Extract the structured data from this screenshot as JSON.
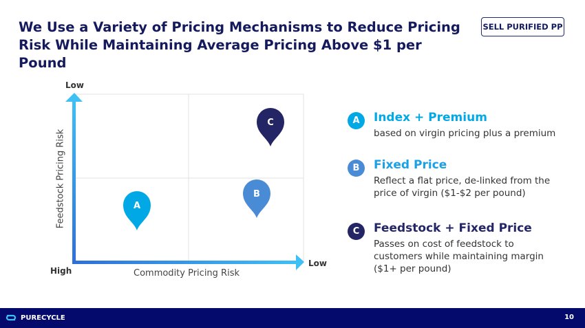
{
  "title": "We Use a Variety of Pricing Mechanisms to Reduce Pricing Risk While Maintaining Average Pricing Above $1 per Pound",
  "badge": "SELL PURIFIED PP",
  "diagram": {
    "y_axis_label": "Feedstock Pricing Risk",
    "x_axis_label": "Commodity Pricing Risk",
    "y_top_label": "Low",
    "x_right_label": "Low",
    "origin_label": "High",
    "pins": [
      {
        "letter": "A",
        "color": "#00a9e6"
      },
      {
        "letter": "B",
        "color": "#4a8bd6"
      },
      {
        "letter": "C",
        "color": "#232564"
      }
    ]
  },
  "legend": [
    {
      "letter": "A",
      "heading": "Index + Premium",
      "desc": "based on virgin pricing plus a premium",
      "color": "#00a9e6",
      "circle": "#00a9e6"
    },
    {
      "letter": "B",
      "heading": "Fixed Price",
      "desc": "Reflect a flat price, de-linked from the price of virgin ($1-$2 per pound)",
      "color": "#1aa0e8",
      "circle": "#4a8bd6"
    },
    {
      "letter": "C",
      "heading": "Feedstock + Fixed Price",
      "desc": "Passes on cost of feedstock to customers while maintaining margin ($1+ per pound)",
      "color": "#232564",
      "circle": "#232564"
    }
  ],
  "footer": {
    "brand": "PURECYCLE",
    "page": "10"
  }
}
